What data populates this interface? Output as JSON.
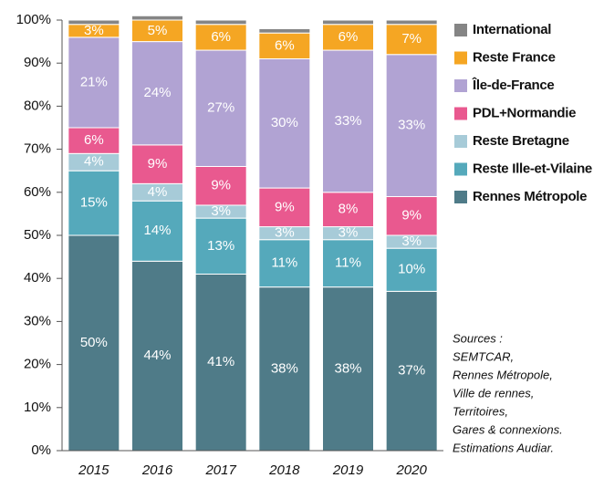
{
  "chart_data": {
    "type": "stacked_bar",
    "categories": [
      "2015",
      "2016",
      "2017",
      "2018",
      "2019",
      "2020"
    ],
    "series": [
      {
        "name": "Rennes Métropole",
        "color": "#4f7b88",
        "values": [
          50,
          44,
          41,
          38,
          38,
          37
        ],
        "value_labels": [
          "50%",
          "44%",
          "41%",
          "38%",
          "38%",
          "37%"
        ]
      },
      {
        "name": "Reste Ille-et-Vilaine",
        "color": "#55a9bb",
        "values": [
          15,
          14,
          13,
          11,
          11,
          10
        ],
        "value_labels": [
          "15%",
          "14%",
          "13%",
          "11%",
          "11%",
          "10%"
        ]
      },
      {
        "name": "Reste Bretagne",
        "color": "#a7cbd8",
        "values": [
          4,
          4,
          3,
          3,
          3,
          3
        ],
        "value_labels": [
          "4%",
          "4%",
          "3%",
          "3%",
          "3%",
          "3%"
        ]
      },
      {
        "name": "PDL+Normandie",
        "color": "#e9598f",
        "values": [
          6,
          9,
          9,
          9,
          8,
          9
        ],
        "value_labels": [
          "6%",
          "9%",
          "9%",
          "9%",
          "8%",
          "9%"
        ]
      },
      {
        "name": "Île-de-France",
        "color": "#b1a3d3",
        "values": [
          21,
          24,
          27,
          30,
          33,
          33
        ],
        "value_labels": [
          "21%",
          "24%",
          "27%",
          "30%",
          "33%",
          "33%"
        ]
      },
      {
        "name": "Reste France",
        "color": "#f5a623",
        "values": [
          3,
          5,
          6,
          6,
          6,
          7
        ],
        "value_labels": [
          "3%",
          "5%",
          "6%",
          "6%",
          "6%",
          "7%"
        ]
      },
      {
        "name": "International",
        "color": "#858585",
        "values": [
          1,
          1,
          1,
          1,
          1,
          1
        ]
      }
    ],
    "ylim": [
      0,
      100
    ],
    "yticks": [
      {
        "value": 0,
        "label": "0%"
      },
      {
        "value": 10,
        "label": "10%"
      },
      {
        "value": 20,
        "label": "20%"
      },
      {
        "value": 30,
        "label": "30%"
      },
      {
        "value": 40,
        "label": "40%"
      },
      {
        "value": 50,
        "label": "50%"
      },
      {
        "value": 60,
        "label": "60%"
      },
      {
        "value": 70,
        "label": "70%"
      },
      {
        "value": 80,
        "label": "80%"
      },
      {
        "value": 90,
        "label": "90%"
      },
      {
        "value": 100,
        "label": "100%"
      }
    ],
    "grid": false,
    "legend": "right",
    "annotations": [
      "Sources :",
      "SEMTCAR,",
      "Rennes Métropole,",
      "Ville de rennes,",
      "Territoires,",
      "Gares & connexions.",
      "Estimations Audiar."
    ]
  }
}
